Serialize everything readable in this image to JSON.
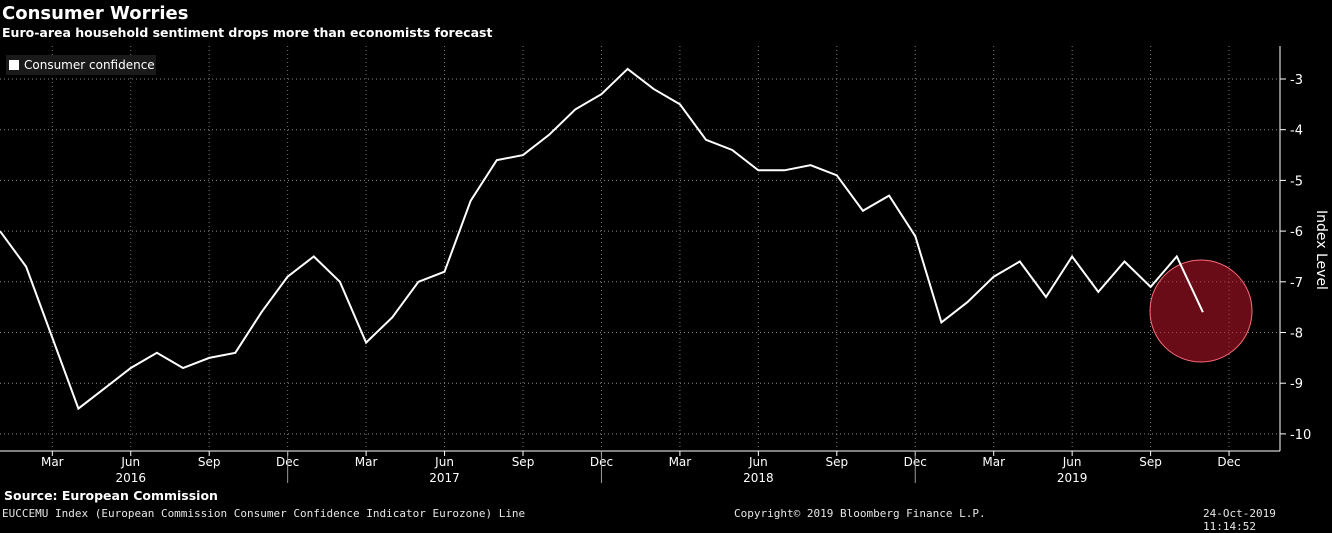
{
  "title": "Consumer Worries",
  "subtitle": "Euro-area household sentiment drops more than economists forecast",
  "source": "Source: European Commission",
  "footer": {
    "index_desc": "EUCCEMU Index (European Commission Consumer Confidence Indicator Eurozone) Line",
    "copyright": "Copyright© 2019 Bloomberg Finance L.P.",
    "timestamp": "24-Oct-2019 11:14:52"
  },
  "colors": {
    "background": "#000000",
    "line": "#ffffff",
    "highlight": "#c0152a"
  },
  "chart_data": {
    "type": "line",
    "ylabel": "Index Level",
    "ylim": [
      -10.5,
      -2.5
    ],
    "yticks": [
      -3,
      -4,
      -5,
      -6,
      -7,
      -8,
      -9,
      -10
    ],
    "grid": true,
    "legend_position": "top-left",
    "month_ticks": [
      "Mar",
      "Jun",
      "Sep",
      "Dec",
      "Mar",
      "Jun",
      "Sep",
      "Dec",
      "Mar",
      "Jun",
      "Sep",
      "Dec",
      "Mar",
      "Jun",
      "Sep",
      "Dec"
    ],
    "year_labels": [
      "2016",
      "2017",
      "2018",
      "2019"
    ],
    "x_start": "2016-01",
    "series": [
      {
        "name": "Consumer confidence",
        "values": [
          -6.0,
          -6.7,
          -8.1,
          -9.5,
          -9.1,
          -8.7,
          -8.4,
          -8.7,
          -8.5,
          -8.4,
          -7.6,
          -6.9,
          -6.5,
          -7.0,
          -8.2,
          -7.7,
          -7.0,
          -6.8,
          -5.4,
          -4.6,
          -4.5,
          -4.1,
          -3.6,
          -3.3,
          -2.8,
          -3.2,
          -3.5,
          -4.2,
          -4.4,
          -4.8,
          -4.8,
          -4.7,
          -4.9,
          -5.6,
          -5.3,
          -6.1,
          -7.8,
          -7.4,
          -6.9,
          -6.6,
          -7.3,
          -6.5,
          -7.2,
          -6.6,
          -7.1,
          -6.5,
          -7.6
        ]
      }
    ],
    "highlight_point_index": 46
  }
}
